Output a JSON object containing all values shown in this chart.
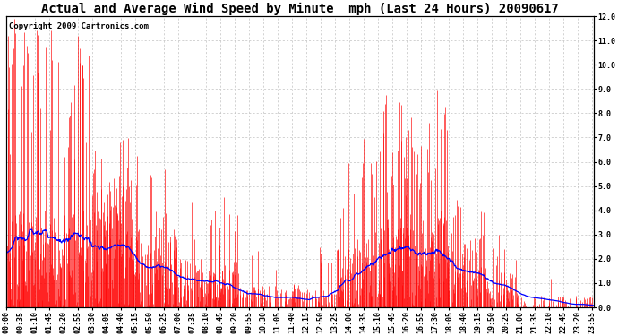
{
  "title": "Actual and Average Wind Speed by Minute  mph (Last 24 Hours) 20090617",
  "copyright": "Copyright 2009 Cartronics.com",
  "ylim": [
    0.0,
    12.0
  ],
  "yticks": [
    0.0,
    1.0,
    2.0,
    3.0,
    4.0,
    5.0,
    6.0,
    7.0,
    8.0,
    9.0,
    10.0,
    11.0,
    12.0
  ],
  "bar_color": "#ff0000",
  "line_color": "#0000ff",
  "bg_color": "#ffffff",
  "grid_color": "#c0c0c0",
  "title_fontsize": 10,
  "copyright_fontsize": 6.5,
  "tick_fontsize": 6,
  "minutes_per_day": 1440,
  "xtick_interval": 35,
  "fig_width": 6.9,
  "fig_height": 3.75,
  "dpi": 100
}
